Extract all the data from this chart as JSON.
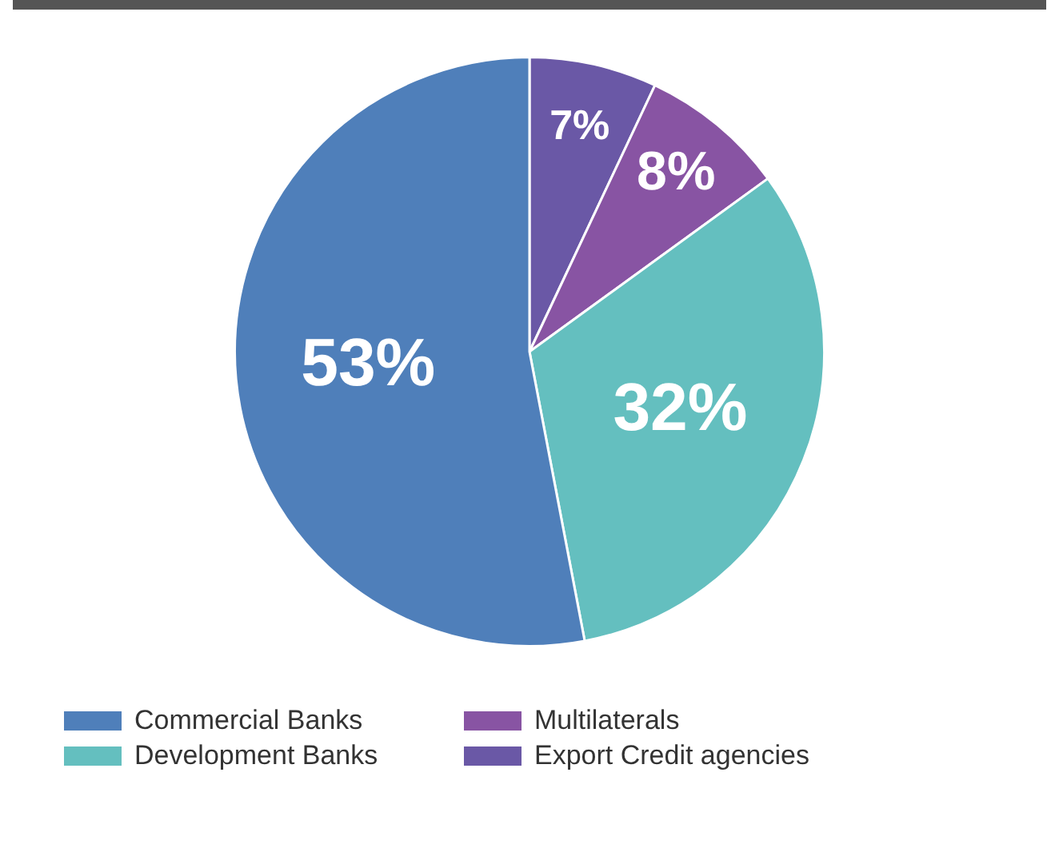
{
  "chart_data": {
    "type": "pie",
    "categories": [
      "Commercial Banks",
      "Development Banks",
      "Multilaterals",
      "Export Credit agencies"
    ],
    "values": [
      53,
      32,
      8,
      7
    ],
    "colors": [
      "#4f7fba",
      "#64bfbf",
      "#8854a3",
      "#6a58a6"
    ],
    "value_labels": [
      "53%",
      "32%",
      "8%",
      "7%"
    ],
    "legend": "bottom"
  }
}
